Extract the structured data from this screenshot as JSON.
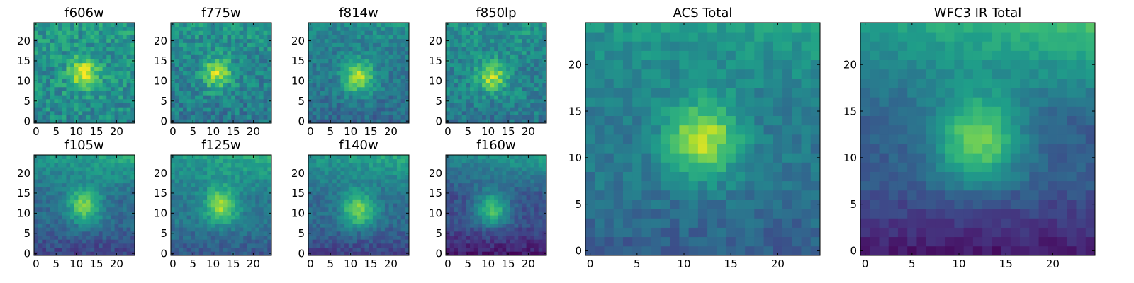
{
  "figure": {
    "background": "#ffffff"
  },
  "colormap": {
    "name": "viridis",
    "stops": [
      "#440154",
      "#482878",
      "#3e4989",
      "#31688e",
      "#26828e",
      "#1f9e89",
      "#35b779",
      "#6ece58",
      "#b5de2b",
      "#fde725"
    ]
  },
  "chart_data": [
    {
      "type": "heatmap",
      "title": "f606w",
      "size": 25,
      "xticks": [
        "0",
        "5",
        "10",
        "15",
        "20"
      ],
      "yticks": [
        "0",
        "5",
        "10",
        "15",
        "20"
      ],
      "peak": [
        12,
        12
      ],
      "sigma": 2.6,
      "amplitude": 0.45,
      "base": 0.5,
      "noise": 0.28,
      "gradient": 0.05,
      "seed": 11
    },
    {
      "type": "heatmap",
      "title": "f775w",
      "size": 25,
      "xticks": [
        "0",
        "5",
        "10",
        "15",
        "20"
      ],
      "yticks": [
        "0",
        "5",
        "10",
        "15",
        "20"
      ],
      "peak": [
        11,
        12
      ],
      "sigma": 2.6,
      "amplitude": 0.45,
      "base": 0.45,
      "noise": 0.26,
      "gradient": 0.1,
      "seed": 23
    },
    {
      "type": "heatmap",
      "title": "f814w",
      "size": 25,
      "xticks": [
        "0",
        "5",
        "10",
        "15",
        "20"
      ],
      "yticks": [
        "0",
        "5",
        "10",
        "15",
        "20"
      ],
      "peak": [
        12,
        11
      ],
      "sigma": 2.8,
      "amplitude": 0.48,
      "base": 0.4,
      "noise": 0.2,
      "gradient": 0.12,
      "seed": 37
    },
    {
      "type": "heatmap",
      "title": "f850lp",
      "size": 25,
      "xticks": [
        "0",
        "5",
        "10",
        "15",
        "20"
      ],
      "yticks": [
        "0",
        "5",
        "10",
        "15",
        "20"
      ],
      "peak": [
        11,
        11
      ],
      "sigma": 2.6,
      "amplitude": 0.42,
      "base": 0.45,
      "noise": 0.24,
      "gradient": 0.1,
      "seed": 53
    },
    {
      "type": "heatmap",
      "title": "f105w",
      "size": 25,
      "xticks": [
        "0",
        "5",
        "10",
        "15",
        "20"
      ],
      "yticks": [
        "0",
        "5",
        "10",
        "15",
        "20"
      ],
      "peak": [
        12,
        12
      ],
      "sigma": 3.0,
      "amplitude": 0.45,
      "base": 0.35,
      "noise": 0.16,
      "gradient": 0.3,
      "seed": 71
    },
    {
      "type": "heatmap",
      "title": "f125w",
      "size": 25,
      "xticks": [
        "0",
        "5",
        "10",
        "15",
        "20"
      ],
      "yticks": [
        "0",
        "5",
        "10",
        "15",
        "20"
      ],
      "peak": [
        12,
        12
      ],
      "sigma": 3.0,
      "amplitude": 0.45,
      "base": 0.4,
      "noise": 0.16,
      "gradient": 0.25,
      "seed": 89
    },
    {
      "type": "heatmap",
      "title": "f140w",
      "size": 25,
      "xticks": [
        "0",
        "5",
        "10",
        "15",
        "20"
      ],
      "yticks": [
        "0",
        "5",
        "10",
        "15",
        "20"
      ],
      "peak": [
        12,
        11
      ],
      "sigma": 3.0,
      "amplitude": 0.45,
      "base": 0.35,
      "noise": 0.15,
      "gradient": 0.3,
      "seed": 97
    },
    {
      "type": "heatmap",
      "title": "f160w",
      "size": 25,
      "xticks": [
        "0",
        "5",
        "10",
        "15",
        "20"
      ],
      "yticks": [
        "0",
        "5",
        "10",
        "15",
        "20"
      ],
      "peak": [
        11,
        11
      ],
      "sigma": 3.0,
      "amplitude": 0.45,
      "base": 0.25,
      "noise": 0.14,
      "gradient": 0.35,
      "seed": 113
    },
    {
      "type": "heatmap",
      "title": "ACS Total",
      "size": 25,
      "xticks": [
        "0",
        "5",
        "10",
        "15",
        "20"
      ],
      "yticks": [
        "0",
        "5",
        "10",
        "15",
        "20"
      ],
      "peak": [
        12,
        12
      ],
      "sigma": 2.8,
      "amplitude": 0.5,
      "base": 0.4,
      "noise": 0.15,
      "gradient": 0.2,
      "seed": 131
    },
    {
      "type": "heatmap",
      "title": "WFC3 IR Total",
      "size": 25,
      "xticks": [
        "0",
        "5",
        "10",
        "15",
        "20"
      ],
      "yticks": [
        "0",
        "5",
        "10",
        "15",
        "20"
      ],
      "peak": [
        12,
        12
      ],
      "sigma": 3.2,
      "amplitude": 0.5,
      "base": 0.3,
      "noise": 0.1,
      "gradient": 0.45,
      "seed": 149
    }
  ]
}
